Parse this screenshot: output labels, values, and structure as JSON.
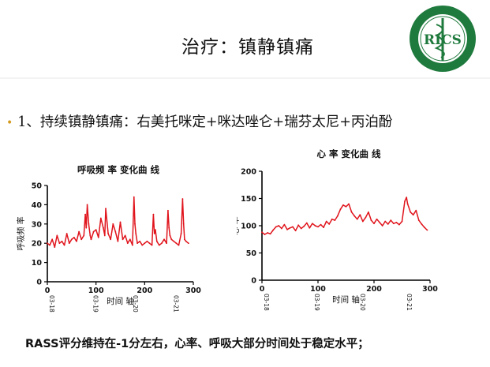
{
  "slide": {
    "title": "治疗：镇静镇痛",
    "bullet": "1、持续镇静镇痛：右美托咪定+咪达唑仑+瑞芬太尼+丙泊酚",
    "footer": "RASS评分维持在-1分左右，心率、呼吸大部分时间处于稳定水平；",
    "logo_text": "RICS"
  },
  "colors": {
    "series": "#e0141c",
    "axis": "#000000",
    "bullet": "#d49b1e",
    "logo_green": "#1f7a3d"
  },
  "chart_data": [
    {
      "type": "line",
      "title": "呼吸频 率 变化曲 线",
      "xlabel": "时间 轴",
      "ylabel": "呼吸频 率",
      "xlim": [
        0,
        300
      ],
      "ylim": [
        0,
        50
      ],
      "xticks": [
        0,
        100,
        200,
        300
      ],
      "yticks": [
        0,
        10,
        20,
        30,
        40,
        50
      ],
      "date_labels": [
        {
          "x": 0,
          "label": "03-18"
        },
        {
          "x": 90,
          "label": "03-19"
        },
        {
          "x": 172,
          "label": "03-20"
        },
        {
          "x": 255,
          "label": "03-21"
        }
      ],
      "grid": false,
      "series": [
        {
          "x": [
            0,
            5,
            10,
            15,
            20,
            25,
            30,
            35,
            40,
            45,
            50,
            55,
            60,
            65,
            70,
            75,
            78,
            80,
            82,
            85,
            88,
            90,
            95,
            100,
            105,
            110,
            115,
            118,
            120,
            125,
            130,
            135,
            140,
            145,
            150,
            155,
            160,
            165,
            170,
            175,
            178,
            180,
            182,
            185,
            190,
            195,
            200,
            205,
            210,
            215,
            218,
            220,
            222,
            225,
            230,
            235,
            240,
            245,
            248,
            250,
            252,
            255,
            260,
            265,
            270,
            275,
            278,
            280,
            282,
            285,
            290
          ],
          "y": [
            20,
            19,
            22,
            18,
            24,
            20,
            21,
            19,
            25,
            20,
            22,
            23,
            21,
            26,
            22,
            24,
            35,
            28,
            40,
            30,
            24,
            22,
            26,
            27,
            23,
            33,
            28,
            24,
            38,
            25,
            22,
            30,
            26,
            21,
            31,
            22,
            24,
            20,
            22,
            19,
            44,
            30,
            25,
            20,
            21,
            19,
            20,
            21,
            20,
            19,
            35,
            25,
            27,
            21,
            19,
            20,
            22,
            20,
            37,
            28,
            24,
            22,
            21,
            20,
            19,
            25,
            43,
            30,
            22,
            21,
            20
          ]
        }
      ]
    },
    {
      "type": "line",
      "title": "心 率 变化曲 线",
      "xlabel": "时间 轴",
      "ylabel": "心 率",
      "xlim": [
        0,
        300
      ],
      "ylim": [
        0,
        200
      ],
      "xticks": [
        0,
        100,
        200,
        300
      ],
      "yticks": [
        0,
        50,
        100,
        150,
        200
      ],
      "date_labels": [
        {
          "x": 0,
          "label": "03-18"
        },
        {
          "x": 90,
          "label": "03-19"
        },
        {
          "x": 172,
          "label": "03-20"
        },
        {
          "x": 255,
          "label": "03-21"
        }
      ],
      "grid": false,
      "series": [
        {
          "x": [
            0,
            5,
            10,
            15,
            20,
            25,
            30,
            35,
            40,
            45,
            50,
            55,
            60,
            65,
            70,
            75,
            80,
            85,
            90,
            95,
            100,
            105,
            110,
            115,
            120,
            125,
            130,
            135,
            140,
            145,
            150,
            155,
            160,
            165,
            170,
            175,
            180,
            185,
            190,
            195,
            200,
            205,
            210,
            215,
            220,
            225,
            230,
            235,
            240,
            245,
            250,
            255,
            258,
            260,
            265,
            270,
            275,
            280,
            285,
            290,
            295
          ],
          "y": [
            88,
            84,
            87,
            85,
            92,
            98,
            100,
            95,
            102,
            93,
            96,
            98,
            91,
            101,
            95,
            99,
            105,
            96,
            104,
            100,
            98,
            102,
            97,
            108,
            103,
            112,
            110,
            118,
            130,
            138,
            135,
            140,
            125,
            118,
            112,
            120,
            108,
            115,
            125,
            110,
            104,
            112,
            106,
            100,
            108,
            103,
            110,
            104,
            106,
            102,
            108,
            145,
            152,
            140,
            125,
            120,
            128,
            110,
            103,
            97,
            92
          ]
        }
      ]
    }
  ]
}
